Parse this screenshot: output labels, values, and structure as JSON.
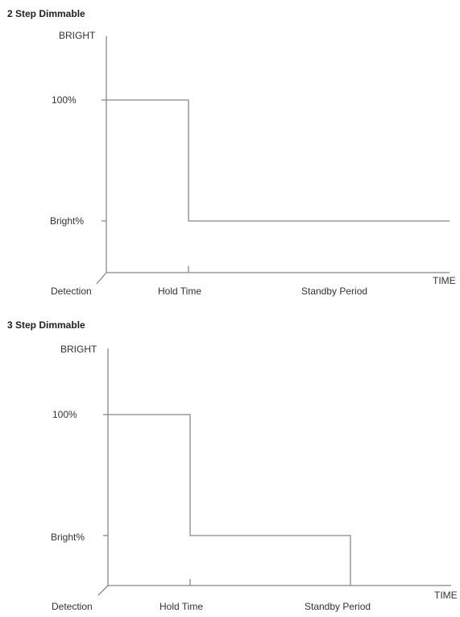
{
  "chart_data": [
    {
      "type": "line",
      "title": "2 Step Dimmable",
      "ylabel": "BRIGHT",
      "xlabel": "TIME",
      "y_ticks": [
        "Bright%",
        "100%"
      ],
      "x_ticks": [
        "Detection",
        "Hold Time",
        "Standby Period"
      ],
      "series": [
        {
          "x": [
            "Detection",
            "Hold Time",
            "Hold Time",
            "TIME"
          ],
          "y": [
            "100%",
            "100%",
            "Bright%",
            "Bright%"
          ]
        }
      ]
    },
    {
      "type": "line",
      "title": "3 Step Dimmable",
      "ylabel": "BRIGHT",
      "xlabel": "TIME",
      "y_ticks": [
        "Bright%",
        "100%"
      ],
      "x_ticks": [
        "Detection",
        "Hold Time",
        "Standby Period"
      ],
      "series": [
        {
          "x": [
            "Detection",
            "Hold Time",
            "Hold Time",
            "Standby Period",
            "Standby Period"
          ],
          "y": [
            "100%",
            "100%",
            "Bright%",
            "Bright%",
            "0"
          ]
        }
      ]
    }
  ]
}
